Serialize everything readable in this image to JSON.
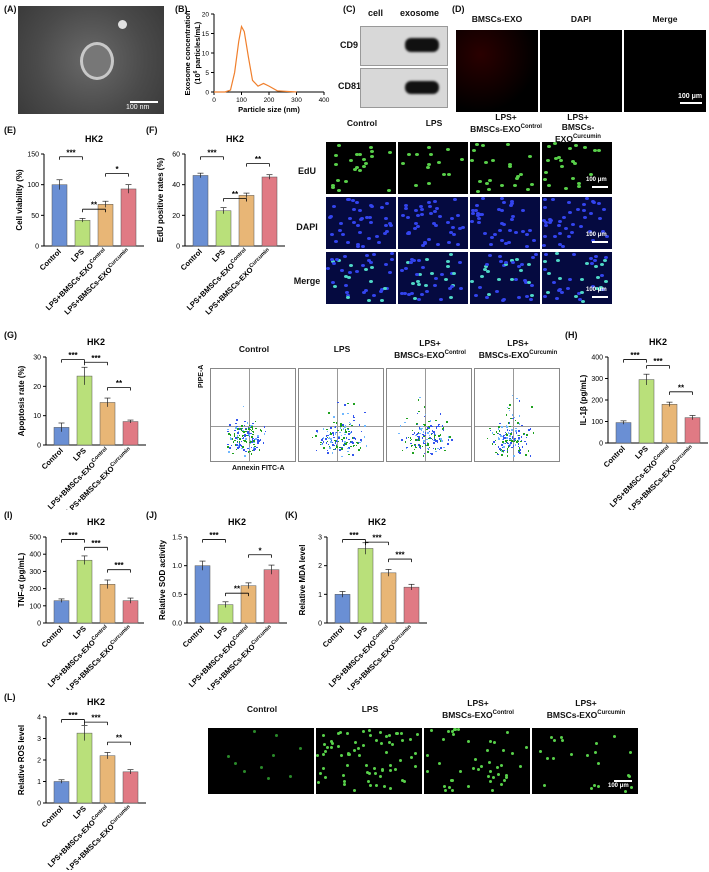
{
  "panels": {
    "A": {
      "label": "(A)",
      "scale": "100 nm"
    },
    "B": {
      "label": "(B)"
    },
    "C": {
      "label": "(C)",
      "col1": "cell",
      "col2": "exosome",
      "row1": "CD9",
      "row2": "CD81"
    },
    "D": {
      "label": "(D)",
      "titles": [
        "BMSCs-EXO",
        "DAPI",
        "Merge"
      ],
      "scale": "100 μm"
    },
    "E": {
      "label": "(E)"
    },
    "F": {
      "label": "(F)",
      "row_labels": [
        "EdU",
        "DAPI",
        "Merge"
      ],
      "scale": "100 μm"
    },
    "G": {
      "label": "(G)"
    },
    "G_flow": {
      "titles": [
        "Control",
        "LPS",
        "LPS+",
        "LPS+"
      ],
      "titles2": [
        "",
        "",
        "BMSCs-EXO",
        "BMSCs-EXO"
      ],
      "sup": [
        "",
        "",
        "Control",
        "Curcumin"
      ],
      "ylabel": "PIPE-A",
      "xlabel": "Annexin FITC-A"
    },
    "H": {
      "label": "(H)"
    },
    "I": {
      "label": "(I)"
    },
    "J": {
      "label": "(J)"
    },
    "K": {
      "label": "(K)"
    },
    "L": {
      "label": "(L)",
      "scale": "100 μm"
    },
    "F_img": {
      "titles": [
        "Control",
        "LPS",
        "LPS+",
        "LPS+"
      ],
      "titles2": [
        "",
        "",
        "BMSCs-EXO",
        "BMSCs-EXO"
      ],
      "sup": [
        "",
        "",
        "Control",
        "Curcumin"
      ]
    },
    "L_img": {
      "titles": [
        "Control",
        "LPS",
        "LPS+",
        "LPS+"
      ],
      "titles2": [
        "",
        "",
        "BMSCs-EXO",
        "BMSCs-EXO"
      ],
      "sup": [
        "",
        "",
        "Control",
        "Curcumin"
      ]
    }
  },
  "colors": {
    "control": "#6a8fd4",
    "lps": "#b9e07a",
    "ctrl_exo": "#e8b676",
    "cur_exo": "#e07a84",
    "orange": "#f07f2c",
    "red": "#e0272c",
    "green": "#58d04a",
    "blue": "#2233cc"
  },
  "categories": [
    "Control",
    "LPS",
    "LPS+BMSCs-EXO",
    "LPS+BMSCs-EXO"
  ],
  "category_sup": [
    "",
    "",
    "Control",
    "Curcumin"
  ],
  "chart_data": [
    {
      "id": "B",
      "type": "line",
      "xlabel": "Particle size (nm)",
      "ylabel": "Exosome concentration",
      "ylabel2": "(10",
      "ylabel_sup": "6",
      "ylabel3": " particles/mL)",
      "xlim": [
        0,
        400
      ],
      "ylim": [
        0,
        20
      ],
      "xticks": [
        0,
        100,
        200,
        300,
        400
      ],
      "yticks": [
        0,
        5,
        10,
        15,
        20
      ],
      "x": [
        0,
        40,
        60,
        75,
        90,
        100,
        110,
        125,
        140,
        160,
        180,
        200,
        230,
        300
      ],
      "y": [
        0,
        0,
        0.5,
        5,
        13,
        16.8,
        15.5,
        9,
        3,
        1.5,
        2.2,
        1.5,
        0.3,
        0
      ]
    },
    {
      "id": "E",
      "type": "bar",
      "title": "HK2",
      "ylabel": "Cell viability (%)",
      "ylim": [
        0,
        150
      ],
      "yticks": [
        0,
        50,
        100,
        150
      ],
      "values": [
        100,
        42,
        68,
        93
      ],
      "errors": [
        8,
        3,
        5,
        7
      ],
      "sig": [
        {
          "a": 0,
          "b": 1,
          "t": "***"
        },
        {
          "a": 1,
          "b": 2,
          "t": "**"
        },
        {
          "a": 2,
          "b": 3,
          "t": "*"
        }
      ]
    },
    {
      "id": "F",
      "type": "bar",
      "title": "HK2",
      "ylabel": "EdU positive rates (%)",
      "ylim": [
        0,
        60
      ],
      "yticks": [
        0,
        20,
        40,
        60
      ],
      "values": [
        46,
        23,
        33,
        45
      ],
      "errors": [
        1.5,
        2,
        1.5,
        1.5
      ],
      "sig": [
        {
          "a": 0,
          "b": 1,
          "t": "***"
        },
        {
          "a": 1,
          "b": 2,
          "t": "**"
        },
        {
          "a": 2,
          "b": 3,
          "t": "**"
        }
      ]
    },
    {
      "id": "G",
      "type": "bar",
      "title": "HK2",
      "ylabel": "Apoptosis rate (%)",
      "ylim": [
        0,
        30
      ],
      "yticks": [
        0,
        10,
        20,
        30
      ],
      "values": [
        6,
        23.5,
        14.5,
        8
      ],
      "errors": [
        1.5,
        3,
        1.5,
        0.5
      ],
      "sig": [
        {
          "a": 0,
          "b": 1,
          "t": "***"
        },
        {
          "a": 1,
          "b": 2,
          "t": "***"
        },
        {
          "a": 2,
          "b": 3,
          "t": "**"
        }
      ]
    },
    {
      "id": "H",
      "type": "bar",
      "title": "HK2",
      "ylabel": "IL-1β (pg/mL)",
      "ylim": [
        0,
        400
      ],
      "yticks": [
        0,
        100,
        200,
        300,
        400
      ],
      "values": [
        95,
        295,
        180,
        118
      ],
      "errors": [
        8,
        25,
        10,
        10
      ],
      "sig": [
        {
          "a": 0,
          "b": 1,
          "t": "***"
        },
        {
          "a": 1,
          "b": 2,
          "t": "***"
        },
        {
          "a": 2,
          "b": 3,
          "t": "**"
        }
      ]
    },
    {
      "id": "I",
      "type": "bar",
      "title": "HK2",
      "ylabel": "TNF-α (pg/mL)",
      "ylim": [
        0,
        500
      ],
      "yticks": [
        0,
        100,
        200,
        300,
        400,
        500
      ],
      "values": [
        130,
        365,
        225,
        130
      ],
      "errors": [
        10,
        25,
        25,
        15
      ],
      "sig": [
        {
          "a": 0,
          "b": 1,
          "t": "***"
        },
        {
          "a": 1,
          "b": 2,
          "t": "***"
        },
        {
          "a": 2,
          "b": 3,
          "t": "***"
        }
      ]
    },
    {
      "id": "J",
      "type": "bar",
      "title": "HK2",
      "ylabel": "Relative SOD activity",
      "ylim": [
        0,
        1.5
      ],
      "yticks": [
        0,
        0.5,
        1.0,
        1.5
      ],
      "ytick_labels": [
        "0.0",
        "0.5",
        "1.0",
        "1.5"
      ],
      "values": [
        1.0,
        0.32,
        0.65,
        0.93
      ],
      "errors": [
        0.08,
        0.05,
        0.05,
        0.08
      ],
      "sig": [
        {
          "a": 0,
          "b": 1,
          "t": "***"
        },
        {
          "a": 1,
          "b": 2,
          "t": "**"
        },
        {
          "a": 2,
          "b": 3,
          "t": "*"
        }
      ]
    },
    {
      "id": "K",
      "type": "bar",
      "title": "HK2",
      "ylabel": "Relative MDA level",
      "ylim": [
        0,
        3
      ],
      "yticks": [
        0,
        1,
        2,
        3
      ],
      "values": [
        1.0,
        2.6,
        1.75,
        1.25
      ],
      "errors": [
        0.1,
        0.2,
        0.12,
        0.1
      ],
      "sig": [
        {
          "a": 0,
          "b": 1,
          "t": "***"
        },
        {
          "a": 1,
          "b": 2,
          "t": "***"
        },
        {
          "a": 2,
          "b": 3,
          "t": "***"
        }
      ]
    },
    {
      "id": "L",
      "type": "bar",
      "title": "HK2",
      "ylabel": "Relative ROS level",
      "ylim": [
        0,
        4
      ],
      "yticks": [
        0,
        1,
        2,
        3,
        4
      ],
      "values": [
        1.0,
        3.25,
        2.2,
        1.45
      ],
      "errors": [
        0.08,
        0.35,
        0.15,
        0.1
      ],
      "sig": [
        {
          "a": 0,
          "b": 1,
          "t": "***"
        },
        {
          "a": 1,
          "b": 2,
          "t": "***"
        },
        {
          "a": 2,
          "b": 3,
          "t": "**"
        }
      ]
    }
  ]
}
